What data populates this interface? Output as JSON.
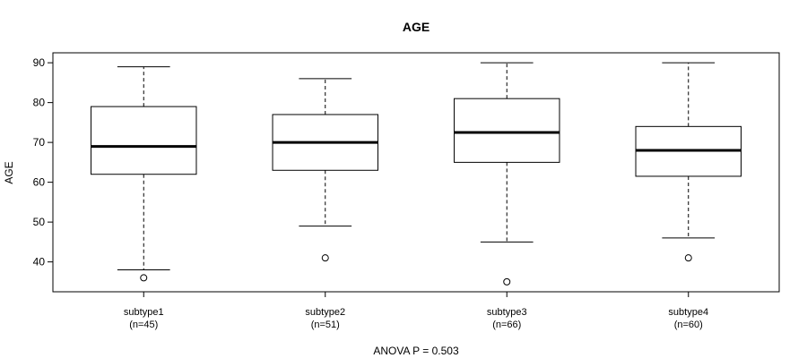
{
  "chart_data": {
    "type": "box",
    "title": "AGE",
    "ylabel": "AGE",
    "xlabel": "ANOVA P = 0.503",
    "ylim": [
      32.5,
      92.5
    ],
    "yticks": [
      40,
      50,
      60,
      70,
      80,
      90
    ],
    "grid": false,
    "categories": [
      {
        "name": "subtype1",
        "n_label": "(n=45)"
      },
      {
        "name": "subtype2",
        "n_label": "(n=51)"
      },
      {
        "name": "subtype3",
        "n_label": "(n=66)"
      },
      {
        "name": "subtype4",
        "n_label": "(n=60)"
      }
    ],
    "boxes": [
      {
        "whisker_low": 38,
        "q1": 62,
        "median": 69,
        "q3": 79,
        "whisker_high": 89,
        "outliers": [
          36
        ]
      },
      {
        "whisker_low": 49,
        "q1": 63,
        "median": 70,
        "q3": 77,
        "whisker_high": 86,
        "outliers": [
          41
        ]
      },
      {
        "whisker_low": 45,
        "q1": 65,
        "median": 72.5,
        "q3": 81,
        "whisker_high": 90,
        "outliers": [
          35
        ]
      },
      {
        "whisker_low": 46,
        "q1": 61.5,
        "median": 68,
        "q3": 74,
        "whisker_high": 90,
        "outliers": [
          41
        ]
      }
    ]
  }
}
